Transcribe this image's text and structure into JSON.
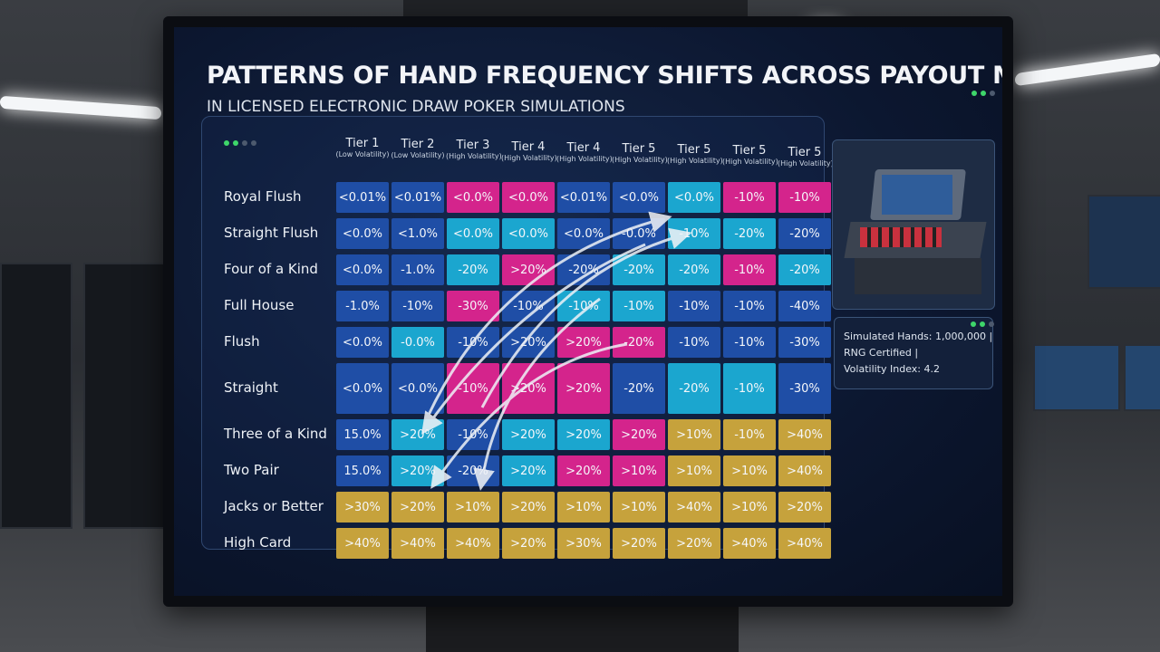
{
  "header": {
    "title": "PATTERNS OF HAND FREQUENCY SHIFTS ACROSS PAYOUT MATRICES",
    "subtitle": "IN LICENSED ELECTRONIC DRAW POKER SIMULATIONS"
  },
  "table": {
    "columns": [
      {
        "name": "Tier 1",
        "note": "(Low Volatility)"
      },
      {
        "name": "Tier 2",
        "note": "(Low Volatility)"
      },
      {
        "name": "Tier 3",
        "note": "(High Volatility)"
      },
      {
        "name": "Tier 4",
        "note": "(High Volatility)"
      },
      {
        "name": "Tier 4",
        "note": "(High Volatility)"
      },
      {
        "name": "Tier 5",
        "note": "(High Volatility)"
      },
      {
        "name": "Tier 5",
        "note": "(High Volatility)"
      },
      {
        "name": "Tier 5",
        "note": "(High Volatility)"
      },
      {
        "name": "Tier 5",
        "note": "(High Volatility)"
      }
    ],
    "palette": {
      "B": "#1f4ea6",
      "C": "#1ba6cf",
      "M": "#d4248c",
      "G": "#c6a23c"
    },
    "rows": [
      {
        "label": "Royal Flush",
        "cells": [
          "<0.01%",
          "<0.01%",
          "<0.0%",
          "<0.0%",
          "<0.01%",
          "<0.0%",
          "<0.0%",
          "-10%",
          "-10%"
        ],
        "colors": "BBMMBBCMM"
      },
      {
        "label": "Straight Flush",
        "cells": [
          "<0.0%",
          "<1.0%",
          "<0.0%",
          "<0.0%",
          "<0.0%",
          "-0.0%",
          "-10%",
          "-20%",
          "-20%"
        ],
        "colors": "BBCCBBCCB"
      },
      {
        "label": "Four of a Kind",
        "cells": [
          "<0.0%",
          "-1.0%",
          "-20%",
          ">20%",
          "-20%",
          "-20%",
          "-20%",
          "-10%",
          "-20%"
        ],
        "colors": "BBCMBCCMC"
      },
      {
        "label": "Full House",
        "cells": [
          "-1.0%",
          "-10%",
          "-30%",
          "-10%",
          "-10%",
          "-10%",
          "-10%",
          "-10%",
          "-40%"
        ],
        "colors": "BBMBCCBBB"
      },
      {
        "label": "Flush",
        "cells": [
          "<0.0%",
          "-0.0%",
          "-10%",
          ">20%",
          ">20%",
          "-20%",
          "-10%",
          "-10%",
          "-30%"
        ],
        "colors": "BCBBMMBBB"
      },
      {
        "label": "Straight",
        "cells": [
          "<0.0%",
          "<0.0%",
          "-10%",
          ">20%",
          ">20%",
          "-20%",
          "-20%",
          "-10%",
          "-30%"
        ],
        "colors": "BBMMMBCCB"
      },
      {
        "label": "Three of a Kind",
        "cells": [
          "15.0%",
          ">20%",
          "-10%",
          ">20%",
          ">20%",
          ">20%",
          ">10%",
          "-10%",
          ">40%"
        ],
        "colors": "BCBCCMGGG"
      },
      {
        "label": "Two Pair",
        "cells": [
          "15.0%",
          ">20%",
          "-20%",
          ">20%",
          ">20%",
          ">10%",
          ">10%",
          ">10%",
          ">40%"
        ],
        "colors": "BCBCMMGGG"
      },
      {
        "label": "Jacks or Better",
        "cells": [
          ">30%",
          ">20%",
          ">10%",
          ">20%",
          ">10%",
          ">10%",
          ">40%",
          ">10%",
          ">20%"
        ],
        "colors": "GGGGGGGGG"
      },
      {
        "label": "High Card",
        "cells": [
          ">40%",
          ">40%",
          ">40%",
          ">20%",
          ">30%",
          ">20%",
          ">20%",
          ">40%",
          ">40%"
        ],
        "colors": "GGGGGGGGG"
      }
    ]
  },
  "info": {
    "lines": [
      "Simulated Hands: 1,000,000 |",
      "RNG Certified |",
      "Volatility Index: 4.2"
    ]
  }
}
